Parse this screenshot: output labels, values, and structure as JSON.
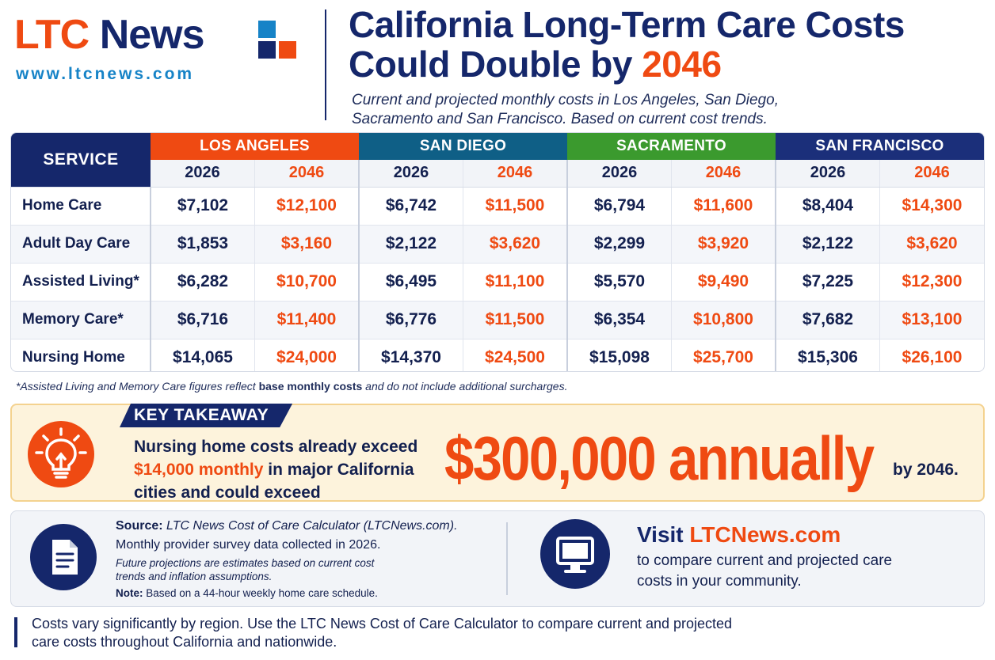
{
  "header": {
    "logo_ltc": "LTC",
    "logo_news": "News",
    "logo_url": "www.ltcnews.com",
    "title_line1": "California Long-Term Care Costs",
    "title_line2_prefix": "Could Double by ",
    "title_year": "2046",
    "subtitle": "Current and projected monthly costs in Los Angeles, San Diego, Sacramento and San Francisco. Based on current cost trends."
  },
  "table": {
    "service_header": "SERVICE",
    "cities": [
      {
        "name": "LOS ANGELES",
        "color": "#ef4a12"
      },
      {
        "name": "SAN DIEGO",
        "color": "#0f5f86"
      },
      {
        "name": "SACRAMENTO",
        "color": "#3b9a2e"
      },
      {
        "name": "SAN FRANCISCO",
        "color": "#1b2f7a"
      }
    ],
    "year_current": "2026",
    "year_projected": "2046",
    "rows": [
      {
        "service": "Home Care",
        "values": [
          "$7,102",
          "$12,100",
          "$6,742",
          "$11,500",
          "$6,794",
          "$11,600",
          "$8,404",
          "$14,300"
        ]
      },
      {
        "service": "Adult Day Care",
        "values": [
          "$1,853",
          "$3,160",
          "$2,122",
          "$3,620",
          "$2,299",
          "$3,920",
          "$2,122",
          "$3,620"
        ]
      },
      {
        "service": "Assisted Living*",
        "values": [
          "$6,282",
          "$10,700",
          "$6,495",
          "$11,100",
          "$5,570",
          "$9,490",
          "$7,225",
          "$12,300"
        ]
      },
      {
        "service": "Memory Care*",
        "values": [
          "$6,716",
          "$11,400",
          "$6,776",
          "$11,500",
          "$6,354",
          "$10,800",
          "$7,682",
          "$13,100"
        ]
      },
      {
        "service": "Nursing Home",
        "values": [
          "$14,065",
          "$24,000",
          "$14,370",
          "$24,500",
          "$15,098",
          "$25,700",
          "$15,306",
          "$26,100"
        ]
      }
    ]
  },
  "footnote": {
    "prefix": "*Assisted Living and Memory Care figures reflect ",
    "bold": "base monthly costs",
    "suffix": " and do not include additional surcharges."
  },
  "takeaway": {
    "label": "KEY TAKEAWAY",
    "line1": "Nursing home costs already exceed",
    "line2_highlight": "$14,000 monthly",
    "line2_rest": " in major California",
    "line3": "cities and could exceed",
    "big_amount": "$300,000 annually",
    "by_year": "by 2046.",
    "icon": "lightbulb-icon"
  },
  "source": {
    "label": "Source:",
    "name": "LTC News Cost of Care Calculator (LTCNews.com).",
    "line2": "Monthly provider survey data collected in 2026.",
    "line3": "Future projections are estimates based on current cost trends and inflation assumptions.",
    "note_label": "Note:",
    "note_text": " Based on a 44-hour weekly home care schedule.",
    "icon": "document-icon"
  },
  "visit": {
    "prefix": "Visit ",
    "site": "LTCNews.com",
    "text": "to compare current and projected care costs in your community.",
    "icon": "monitor-icon"
  },
  "bottom_note": "Costs vary significantly by region. Use the LTC News Cost of Care Calculator to compare current and projected care costs throughout California and nationwide.",
  "colors": {
    "navy": "#15276b",
    "orange": "#ef4a12",
    "blue": "#1683c7",
    "takeaway_bg": "#fdf3dc"
  }
}
